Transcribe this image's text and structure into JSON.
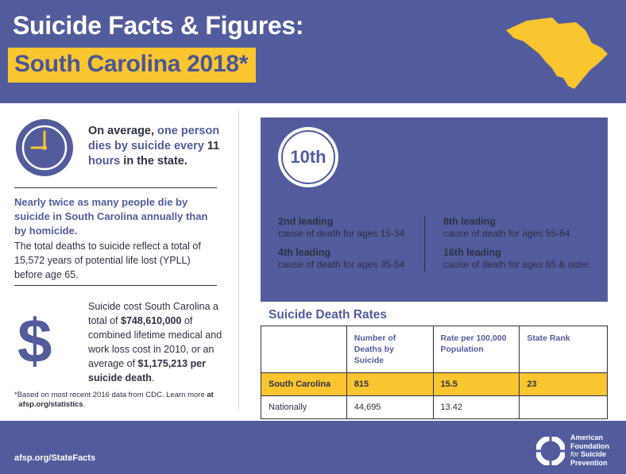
{
  "header": {
    "title_line1": "Suicide Facts & Figures:",
    "title_line2": "South Carolina 2018*"
  },
  "colors": {
    "brand": "#525c9c",
    "accent": "#fbc530",
    "text": "#2d3142"
  },
  "left": {
    "fact1_a": "On average, ",
    "fact1_hl1": "one person",
    "fact1_b": " dies by suicide every ",
    "fact1_hl2": "11",
    "fact1_hl3": "hours",
    "fact1_c": " in the state.",
    "fact2": "Nearly twice as many people die by suicide in South Carolina annually than by homicide.",
    "fact3": "The total deaths to suicide reflect a total of 15,572 years of potential life lost (YPLL) before age 65.",
    "dollar_symbol": "$",
    "fact4_a": "Suicide cost South Carolina a total of ",
    "fact4_amount": "$748,610,000",
    "fact4_b": " of combined lifetime medical and work loss cost in 2010, or an average of ",
    "fact4_avg": "$1,175,213 per suicide death",
    "fact4_c": ".",
    "footnote_a": "*Based on most recent 2016 data from CDC. Learn more ",
    "footnote_at": "at",
    "footnote_link": "afsp.org/statistics",
    "footnote_end": "."
  },
  "rank": {
    "rank_value": "10th",
    "leading": [
      {
        "title": "2nd leading",
        "desc": "cause of death for ages 15-34"
      },
      {
        "title": "4th leading",
        "desc": "cause of death for ages 35-54"
      },
      {
        "title": "8th leading",
        "desc": "cause of death for ages 55-64"
      },
      {
        "title": "16th leading",
        "desc": "cause of death for ages 65 & older"
      }
    ]
  },
  "rates": {
    "title": "Suicide Death Rates",
    "headers": [
      "",
      "Number of Deaths by Suicide",
      "Rate per 100,000 Population",
      "State Rank"
    ],
    "rows": [
      [
        "South Carolina",
        "815",
        "15.5",
        "23"
      ],
      [
        "Nationally",
        "44,695",
        "13.42",
        ""
      ]
    ]
  },
  "footer": {
    "url": "afsp.org/StateFacts",
    "org_line1": "American",
    "org_line2": "Foundation",
    "org_for": "for",
    "org_line3": "Suicide",
    "org_line4": "Prevention"
  },
  "icons": {
    "state_map": "south-carolina-map-icon",
    "clock": "clock-icon",
    "lifesaver": "lifesaver-icon"
  }
}
